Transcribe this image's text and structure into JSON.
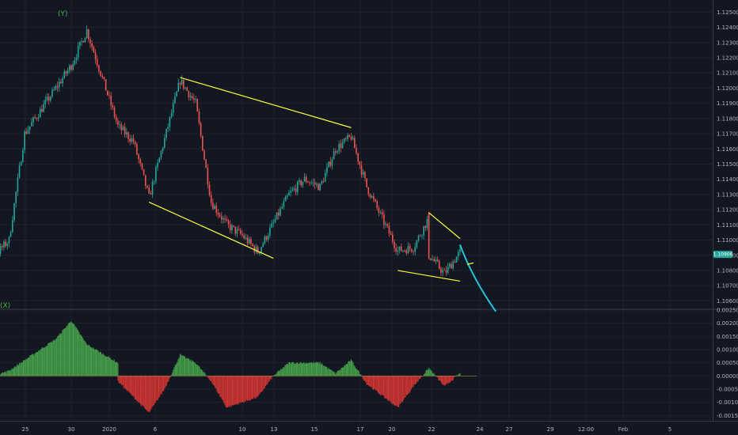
{
  "chart_data": [
    {
      "type": "candlestick",
      "title": "",
      "wave_labels": [
        "(Y)",
        "(X)"
      ],
      "ylim": [
        1.1055,
        1.1258
      ],
      "y_ticks": [
        "1.12500",
        "1.12400",
        "1.12300",
        "1.12200",
        "1.12100",
        "1.12000",
        "1.11900",
        "1.11800",
        "1.11700",
        "1.11600",
        "1.11500",
        "1.11400",
        "1.11300",
        "1.11200",
        "1.11100",
        "1.11000",
        "1.10900",
        "1.10800",
        "1.10700",
        "1.10600"
      ],
      "x_ticks": [
        "25",
        "30",
        "2020",
        "6",
        "10",
        "13",
        "15",
        "17",
        "20",
        "22",
        "24",
        "27",
        "29",
        "12:00",
        "Feb",
        "5"
      ],
      "last_price": "1.10906",
      "keypoints": [
        {
          "date": "2019-12-23",
          "value": 1.109
        },
        {
          "date": "2019-12-24",
          "value": 1.1078
        },
        {
          "date": "2019-12-26",
          "value": 1.11
        },
        {
          "date": "2019-12-27",
          "value": 1.117
        },
        {
          "date": "2019-12-30",
          "value": 1.1215
        },
        {
          "date": "2019-12-31",
          "value": 1.1238
        },
        {
          "date": "2020-01-02",
          "value": 1.1175
        },
        {
          "date": "2020-01-03",
          "value": 1.1165
        },
        {
          "date": "2020-01-04",
          "value": 1.1128
        },
        {
          "date": "2020-01-06",
          "value": 1.1205
        },
        {
          "date": "2020-01-07",
          "value": 1.119
        },
        {
          "date": "2020-01-08",
          "value": 1.1125
        },
        {
          "date": "2020-01-09",
          "value": 1.111
        },
        {
          "date": "2020-01-10",
          "value": 1.1103
        },
        {
          "date": "2020-01-11",
          "value": 1.1092
        },
        {
          "date": "2020-01-13",
          "value": 1.113
        },
        {
          "date": "2020-01-14",
          "value": 1.114
        },
        {
          "date": "2020-01-15",
          "value": 1.1135
        },
        {
          "date": "2020-01-16",
          "value": 1.116
        },
        {
          "date": "2020-01-17",
          "value": 1.1168
        },
        {
          "date": "2020-01-18",
          "value": 1.1135
        },
        {
          "date": "2020-01-20",
          "value": 1.1093
        },
        {
          "date": "2020-01-21",
          "value": 1.1095
        },
        {
          "date": "2020-01-22",
          "value": 1.1115
        },
        {
          "date": "2020-01-22",
          "value": 1.109
        },
        {
          "date": "2020-01-23",
          "value": 1.1078
        },
        {
          "date": "2020-01-24",
          "value": 1.1092
        }
      ],
      "projection": [
        {
          "date": "2020-01-24",
          "value": 1.1097
        },
        {
          "date": "2020-01-25",
          "value": 1.1075
        },
        {
          "date": "2020-01-26",
          "value": 1.1053
        }
      ],
      "channels": [
        {
          "from": {
            "date": "2020-01-06",
            "value": 1.1207
          },
          "to": {
            "date": "2020-01-17",
            "value": 1.1174
          }
        },
        {
          "from": {
            "date": "2020-01-04",
            "value": 1.1125
          },
          "to": {
            "date": "2020-01-12",
            "value": 1.1088
          }
        },
        {
          "from": {
            "date": "2020-01-22",
            "value": 1.1118
          },
          "to": {
            "date": "2020-01-24",
            "value": 1.1101
          }
        },
        {
          "from": {
            "date": "2020-01-20",
            "value": 1.108
          },
          "to": {
            "date": "2020-01-24",
            "value": 1.1073
          }
        },
        {
          "from": {
            "date": "2020-01-24",
            "value": 1.1084
          },
          "to": {
            "date": "2020-01-24",
            "value": 1.1085
          }
        }
      ],
      "colors": {
        "up": "#26a69a",
        "down": "#ef5350",
        "line": "#ffff3b",
        "projection": "#26c6da",
        "price_tag": "#26a69a"
      }
    },
    {
      "type": "histogram",
      "ylim": [
        -0.0017,
        0.0025
      ],
      "y_ticks": [
        "0.00250",
        "0.00200",
        "0.00150",
        "0.00100",
        "0.00050",
        "0.00000",
        "-0.00050",
        "-0.00100",
        "-0.00150"
      ],
      "keypoints": [
        {
          "date": "2019-12-23",
          "value": -0.0004
        },
        {
          "date": "2019-12-25",
          "value": 0.0
        },
        {
          "date": "2019-12-26",
          "value": 0.0002
        },
        {
          "date": "2019-12-29",
          "value": 0.0014
        },
        {
          "date": "2019-12-30",
          "value": 0.0021
        },
        {
          "date": "2019-12-31",
          "value": 0.0012
        },
        {
          "date": "2020-01-02",
          "value": 0.0005
        },
        {
          "date": "2020-01-02",
          "value": -0.0002
        },
        {
          "date": "2020-01-04",
          "value": -0.0014
        },
        {
          "date": "2020-01-05",
          "value": -0.0005
        },
        {
          "date": "2020-01-06",
          "value": 0.0008
        },
        {
          "date": "2020-01-07",
          "value": 0.0005
        },
        {
          "date": "2020-01-08",
          "value": -0.0002
        },
        {
          "date": "2020-01-09",
          "value": -0.0012
        },
        {
          "date": "2020-01-11",
          "value": -0.0008
        },
        {
          "date": "2020-01-12",
          "value": 0.0
        },
        {
          "date": "2020-01-13",
          "value": 0.0005
        },
        {
          "date": "2020-01-15",
          "value": 0.0005
        },
        {
          "date": "2020-01-16",
          "value": 0.0001
        },
        {
          "date": "2020-01-17",
          "value": 0.0006
        },
        {
          "date": "2020-01-18",
          "value": -0.0003
        },
        {
          "date": "2020-01-20",
          "value": -0.0012
        },
        {
          "date": "2020-01-21",
          "value": -0.0004
        },
        {
          "date": "2020-01-22",
          "value": 0.0003
        },
        {
          "date": "2020-01-23",
          "value": -0.0004
        },
        {
          "date": "2020-01-24",
          "value": 0.0001
        }
      ],
      "colors": {
        "positive": "#4caf50",
        "negative": "#e53935"
      }
    }
  ],
  "colors": {
    "background": "#131722",
    "grid": "#1e222d",
    "divider": "#363a45",
    "text": "#b2b5be"
  }
}
